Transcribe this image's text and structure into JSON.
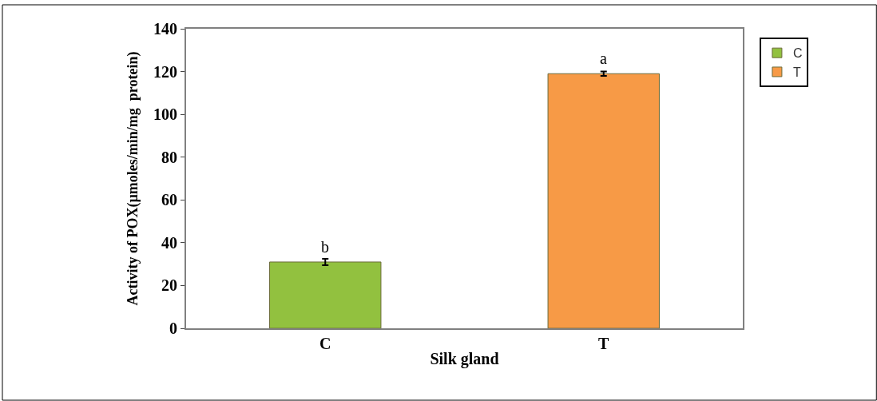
{
  "chart_data": {
    "type": "bar",
    "xlabel": "Silk gland",
    "ylabel": "Activity of POX(µmoles/min/mg  protein)",
    "categories": [
      "C",
      "T"
    ],
    "series": [
      {
        "name": "C",
        "color": "#92c13f",
        "values": [
          31,
          null
        ],
        "errors": [
          1.5,
          null
        ]
      },
      {
        "name": "T",
        "color": "#f79a46",
        "values": [
          null,
          119
        ],
        "errors": [
          null,
          1
        ]
      }
    ],
    "annotations": [
      {
        "text": "b",
        "x": "C",
        "y": 31
      },
      {
        "text": "a",
        "x": "T",
        "y": 119
      }
    ],
    "ylim": [
      0,
      140
    ],
    "yticks": [
      0,
      20,
      40,
      60,
      80,
      100,
      120,
      140
    ],
    "legend": "right"
  }
}
